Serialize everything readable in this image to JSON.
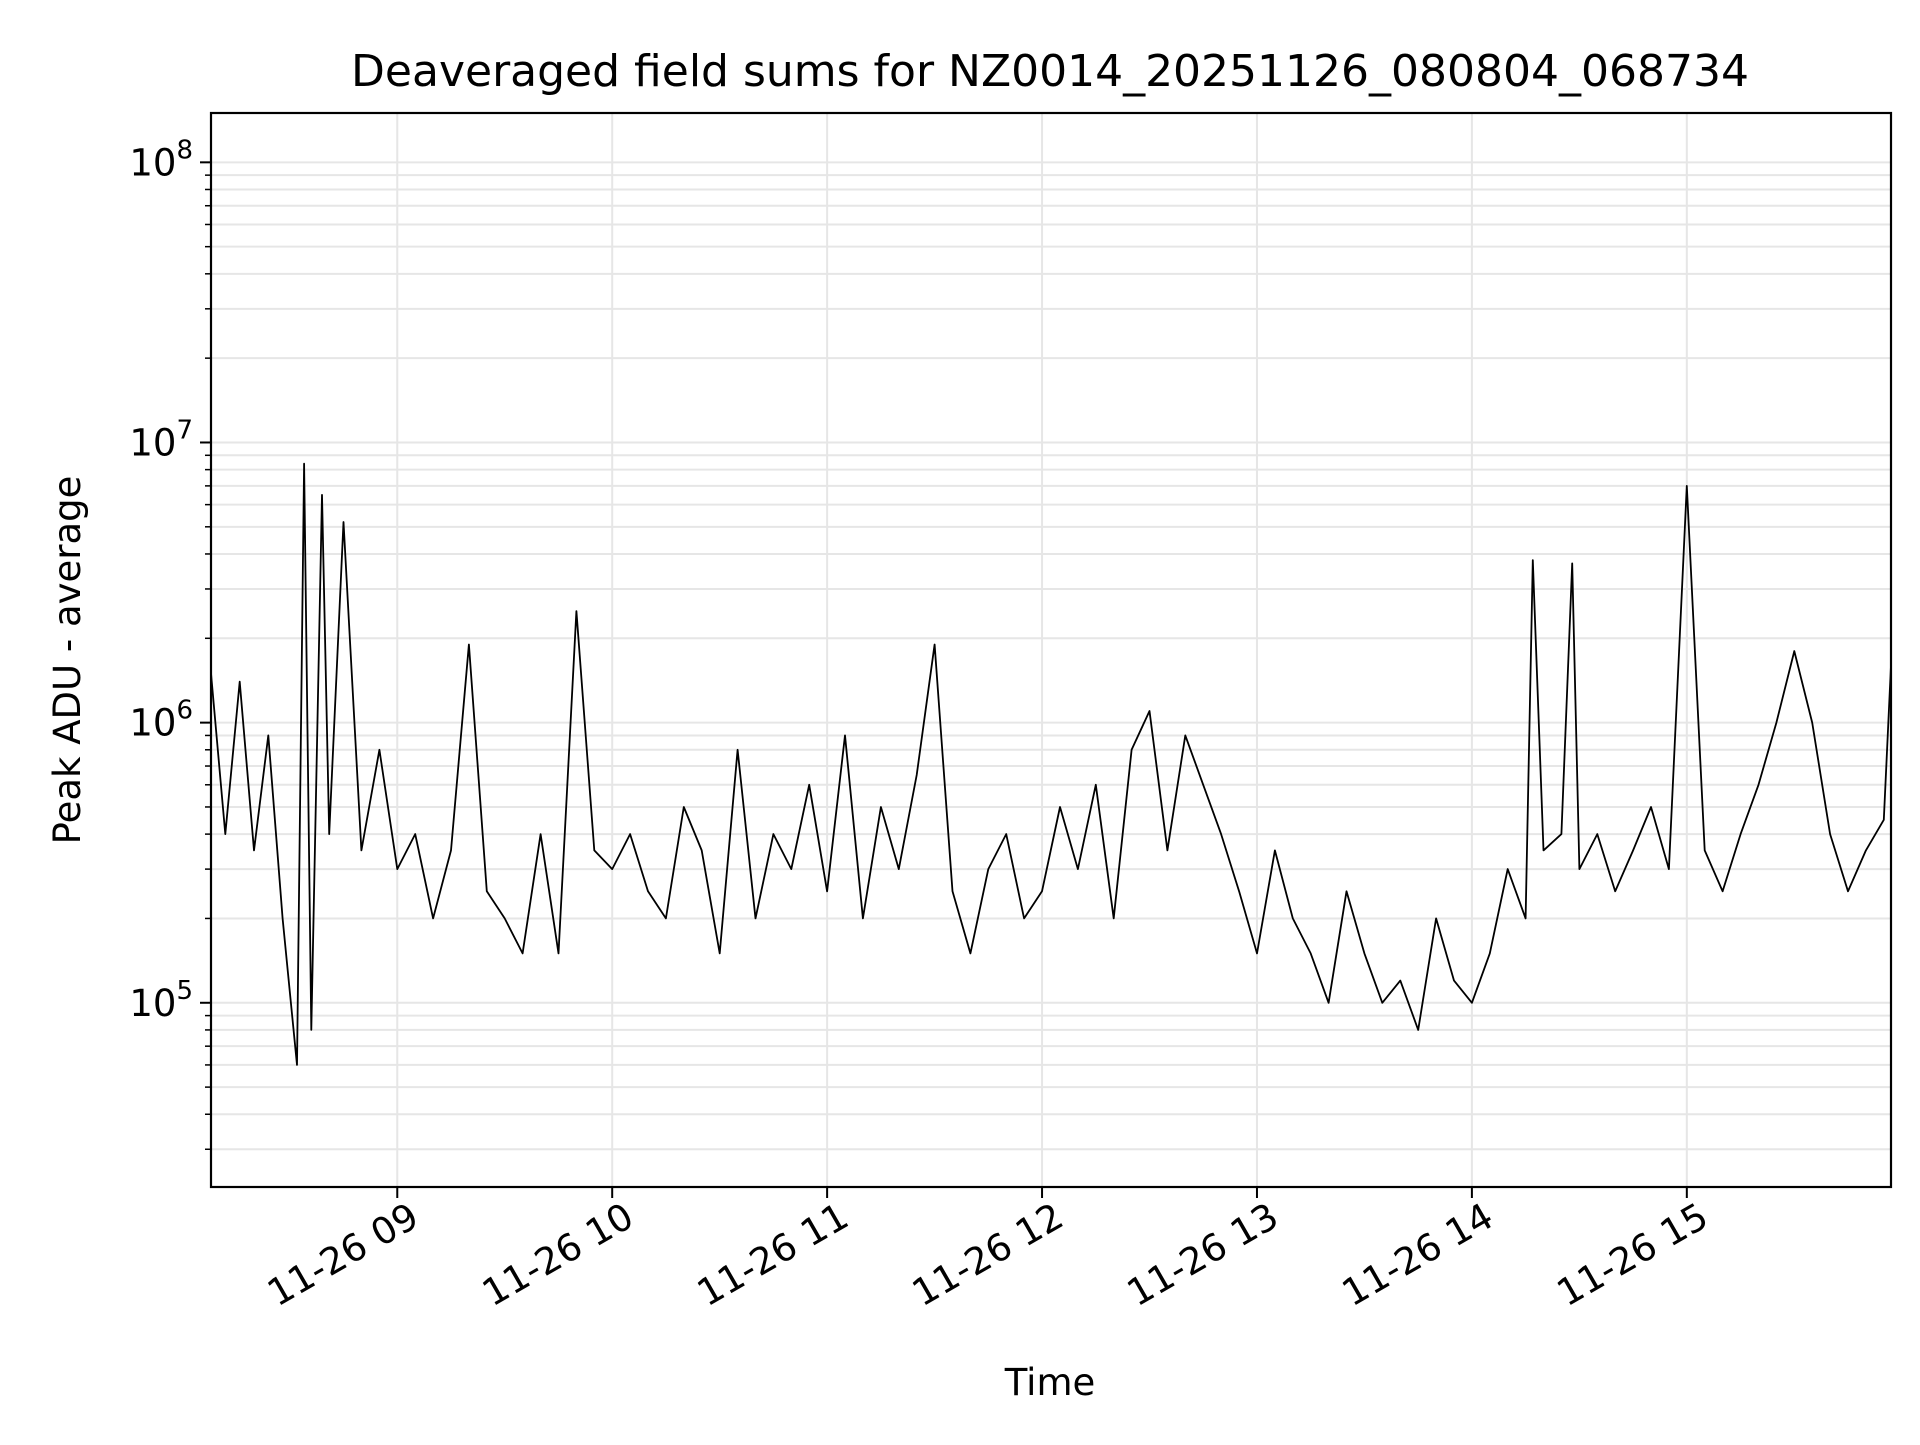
{
  "chart_data": {
    "type": "line",
    "title": "Deaveraged field sums for NZ0014_20251126_080804_068734",
    "xlabel": "Time",
    "ylabel": "Peak ADU - average",
    "yscale": "log",
    "ylim": [
      22000,
      150000000
    ],
    "xlim": [
      "2025-11-26 08:08",
      "2025-11-26 15:57"
    ],
    "grid": true,
    "line_color": "#000000",
    "x_ticks": [
      "11-26 09",
      "11-26 10",
      "11-26 11",
      "11-26 12",
      "11-26 13",
      "11-26 14",
      "11-26 15"
    ],
    "x_tick_times": [
      "2025-11-26 09:00",
      "2025-11-26 10:00",
      "2025-11-26 11:00",
      "2025-11-26 12:00",
      "2025-11-26 13:00",
      "2025-11-26 14:00",
      "2025-11-26 15:00"
    ],
    "y_ticks": [
      {
        "base": "10",
        "exp": "5",
        "value": 100000
      },
      {
        "base": "10",
        "exp": "6",
        "value": 1000000
      },
      {
        "base": "10",
        "exp": "7",
        "value": 10000000
      },
      {
        "base": "10",
        "exp": "8",
        "value": 100000000
      }
    ],
    "series": [
      {
        "x": [
          "2025-11-26 08:08",
          "2025-11-26 08:12",
          "2025-11-26 08:16",
          "2025-11-26 08:20",
          "2025-11-26 08:24",
          "2025-11-26 08:28",
          "2025-11-26 08:32",
          "2025-11-26 08:34",
          "2025-11-26 08:36",
          "2025-11-26 08:39",
          "2025-11-26 08:41",
          "2025-11-26 08:45",
          "2025-11-26 08:50",
          "2025-11-26 08:55",
          "2025-11-26 09:00",
          "2025-11-26 09:05",
          "2025-11-26 09:10",
          "2025-11-26 09:15",
          "2025-11-26 09:20",
          "2025-11-26 09:25",
          "2025-11-26 09:30",
          "2025-11-26 09:35",
          "2025-11-26 09:40",
          "2025-11-26 09:45",
          "2025-11-26 09:50",
          "2025-11-26 09:55",
          "2025-11-26 10:00",
          "2025-11-26 10:05",
          "2025-11-26 10:10",
          "2025-11-26 10:15",
          "2025-11-26 10:20",
          "2025-11-26 10:25",
          "2025-11-26 10:30",
          "2025-11-26 10:35",
          "2025-11-26 10:40",
          "2025-11-26 10:45",
          "2025-11-26 10:50",
          "2025-11-26 10:55",
          "2025-11-26 11:00",
          "2025-11-26 11:05",
          "2025-11-26 11:10",
          "2025-11-26 11:15",
          "2025-11-26 11:20",
          "2025-11-26 11:25",
          "2025-11-26 11:30",
          "2025-11-26 11:35",
          "2025-11-26 11:40",
          "2025-11-26 11:45",
          "2025-11-26 11:50",
          "2025-11-26 11:55",
          "2025-11-26 12:00",
          "2025-11-26 12:05",
          "2025-11-26 12:10",
          "2025-11-26 12:15",
          "2025-11-26 12:20",
          "2025-11-26 12:25",
          "2025-11-26 12:30",
          "2025-11-26 12:35",
          "2025-11-26 12:40",
          "2025-11-26 12:45",
          "2025-11-26 12:50",
          "2025-11-26 12:55",
          "2025-11-26 13:00",
          "2025-11-26 13:05",
          "2025-11-26 13:10",
          "2025-11-26 13:15",
          "2025-11-26 13:20",
          "2025-11-26 13:25",
          "2025-11-26 13:30",
          "2025-11-26 13:35",
          "2025-11-26 13:40",
          "2025-11-26 13:45",
          "2025-11-26 13:50",
          "2025-11-26 13:55",
          "2025-11-26 14:00",
          "2025-11-26 14:05",
          "2025-11-26 14:10",
          "2025-11-26 14:15",
          "2025-11-26 14:17",
          "2025-11-26 14:20",
          "2025-11-26 14:25",
          "2025-11-26 14:28",
          "2025-11-26 14:30",
          "2025-11-26 14:35",
          "2025-11-26 14:40",
          "2025-11-26 14:45",
          "2025-11-26 14:50",
          "2025-11-26 14:55",
          "2025-11-26 15:00",
          "2025-11-26 15:05",
          "2025-11-26 15:10",
          "2025-11-26 15:15",
          "2025-11-26 15:20",
          "2025-11-26 15:25",
          "2025-11-26 15:30",
          "2025-11-26 15:35",
          "2025-11-26 15:40",
          "2025-11-26 15:45",
          "2025-11-26 15:50",
          "2025-11-26 15:55",
          "2025-11-26 15:57"
        ],
        "values": [
          1500000,
          400000,
          1400000,
          350000,
          900000,
          200000,
          60000,
          8400000,
          80000,
          6500000,
          400000,
          5200000,
          350000,
          800000,
          300000,
          400000,
          200000,
          350000,
          1900000,
          250000,
          200000,
          150000,
          400000,
          150000,
          2500000,
          350000,
          300000,
          400000,
          250000,
          200000,
          500000,
          350000,
          150000,
          800000,
          200000,
          400000,
          300000,
          600000,
          250000,
          900000,
          200000,
          500000,
          300000,
          650000,
          1900000,
          250000,
          150000,
          300000,
          400000,
          200000,
          250000,
          500000,
          300000,
          600000,
          200000,
          800000,
          1100000,
          350000,
          900000,
          600000,
          400000,
          250000,
          150000,
          350000,
          200000,
          150000,
          100000,
          250000,
          150000,
          100000,
          120000,
          80000,
          200000,
          120000,
          100000,
          150000,
          300000,
          200000,
          3800000,
          350000,
          400000,
          3700000,
          300000,
          400000,
          250000,
          350000,
          500000,
          300000,
          7000000,
          350000,
          250000,
          400000,
          600000,
          1000000,
          1800000,
          1000000,
          400000,
          250000,
          350000,
          450000,
          1600000
        ]
      }
    ]
  }
}
